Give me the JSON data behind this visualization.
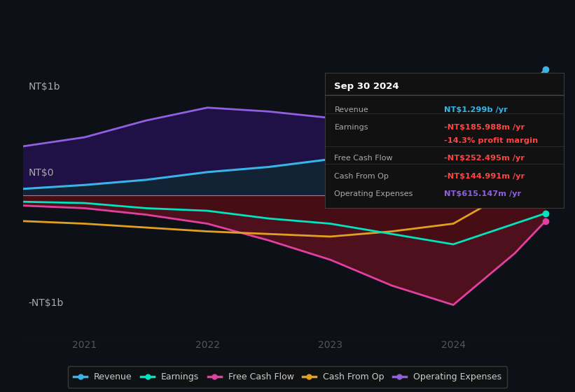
{
  "background_color": "#0d1117",
  "plot_bg_color": "#0d1117",
  "ylabel_top": "NT$1b",
  "ylabel_bottom": "-NT$1b",
  "ylabel_zero": "NT$0",
  "x_ticks": [
    2021,
    2022,
    2023,
    2024
  ],
  "ylim": [
    -1.1,
    1.15
  ],
  "x_min": 2020.5,
  "x_max": 2024.85,
  "series": {
    "Revenue": {
      "color": "#38b4e8",
      "x": [
        2020.5,
        2021.0,
        2021.5,
        2022.0,
        2022.5,
        2023.0,
        2023.5,
        2024.0,
        2024.5,
        2024.75
      ],
      "y": [
        0.05,
        0.08,
        0.12,
        0.18,
        0.22,
        0.28,
        0.35,
        0.45,
        0.7,
        0.98
      ]
    },
    "Earnings": {
      "color": "#00e5c0",
      "x": [
        2020.5,
        2021.0,
        2021.5,
        2022.0,
        2022.5,
        2023.0,
        2023.5,
        2024.0,
        2024.5,
        2024.75
      ],
      "y": [
        -0.05,
        -0.06,
        -0.1,
        -0.12,
        -0.18,
        -0.22,
        -0.3,
        -0.38,
        -0.22,
        -0.14
      ]
    },
    "FreeCashFlow": {
      "color": "#e040a0",
      "x": [
        2020.5,
        2021.0,
        2021.5,
        2022.0,
        2022.5,
        2023.0,
        2023.5,
        2024.0,
        2024.5,
        2024.75
      ],
      "y": [
        -0.08,
        -0.1,
        -0.15,
        -0.22,
        -0.35,
        -0.5,
        -0.7,
        -0.85,
        -0.45,
        -0.2
      ]
    },
    "CashFromOp": {
      "color": "#e0a020",
      "x": [
        2020.5,
        2021.0,
        2021.5,
        2022.0,
        2022.5,
        2023.0,
        2023.5,
        2024.0,
        2024.5,
        2024.75
      ],
      "y": [
        -0.2,
        -0.22,
        -0.25,
        -0.28,
        -0.3,
        -0.32,
        -0.28,
        -0.22,
        0.05,
        0.18
      ]
    },
    "OperatingExpenses": {
      "color": "#9060e0",
      "x": [
        2020.5,
        2021.0,
        2021.5,
        2022.0,
        2022.5,
        2023.0,
        2023.5,
        2024.0,
        2024.5,
        2024.75
      ],
      "y": [
        0.38,
        0.45,
        0.58,
        0.68,
        0.65,
        0.6,
        0.55,
        0.52,
        0.52,
        0.52
      ]
    }
  },
  "tooltip": {
    "date": "Sep 30 2024",
    "rows": [
      {
        "label": "Revenue",
        "value": "NT$1.299b /yr",
        "value_color": "#38b4e8"
      },
      {
        "label": "Earnings",
        "value": "-NT$185.988m /yr",
        "value_color": "#ff4444"
      },
      {
        "label": "",
        "value": "-14.3% profit margin",
        "value_color": "#ff4444"
      },
      {
        "label": "Free Cash Flow",
        "value": "-NT$252.495m /yr",
        "value_color": "#ff4444"
      },
      {
        "label": "Cash From Op",
        "value": "-NT$144.991m /yr",
        "value_color": "#ff4444"
      },
      {
        "label": "Operating Expenses",
        "value": "NT$615.147m /yr",
        "value_color": "#9060e0"
      }
    ],
    "sep_after": [
      0,
      2,
      3,
      4
    ]
  },
  "legend": [
    {
      "label": "Revenue",
      "color": "#38b4e8"
    },
    {
      "label": "Earnings",
      "color": "#00e5c0"
    },
    {
      "label": "Free Cash Flow",
      "color": "#e040a0"
    },
    {
      "label": "Cash From Op",
      "color": "#e0a020"
    },
    {
      "label": "Operating Expenses",
      "color": "#9060e0"
    }
  ]
}
